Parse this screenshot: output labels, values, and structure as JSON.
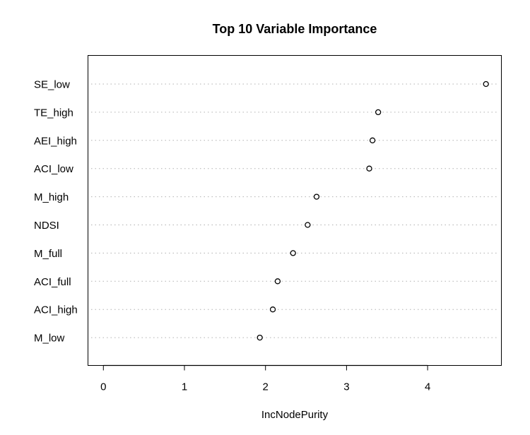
{
  "chart_data": {
    "type": "scatter",
    "title": "Top 10 Variable Importance",
    "xlabel": "IncNodePurity",
    "ylabel": "",
    "categories": [
      "SE_low",
      "TE_high",
      "AEI_high",
      "ACI_low",
      "M_high",
      "NDSI",
      "M_full",
      "ACI_full",
      "ACI_high",
      "M_low"
    ],
    "values": [
      4.72,
      3.39,
      3.32,
      3.28,
      2.63,
      2.52,
      2.34,
      2.15,
      2.09,
      1.93
    ],
    "xticks": [
      0,
      1,
      2,
      3,
      4
    ],
    "xlim": [
      -0.19,
      4.91
    ],
    "grid": "horizontal dotted",
    "legend": "none"
  }
}
